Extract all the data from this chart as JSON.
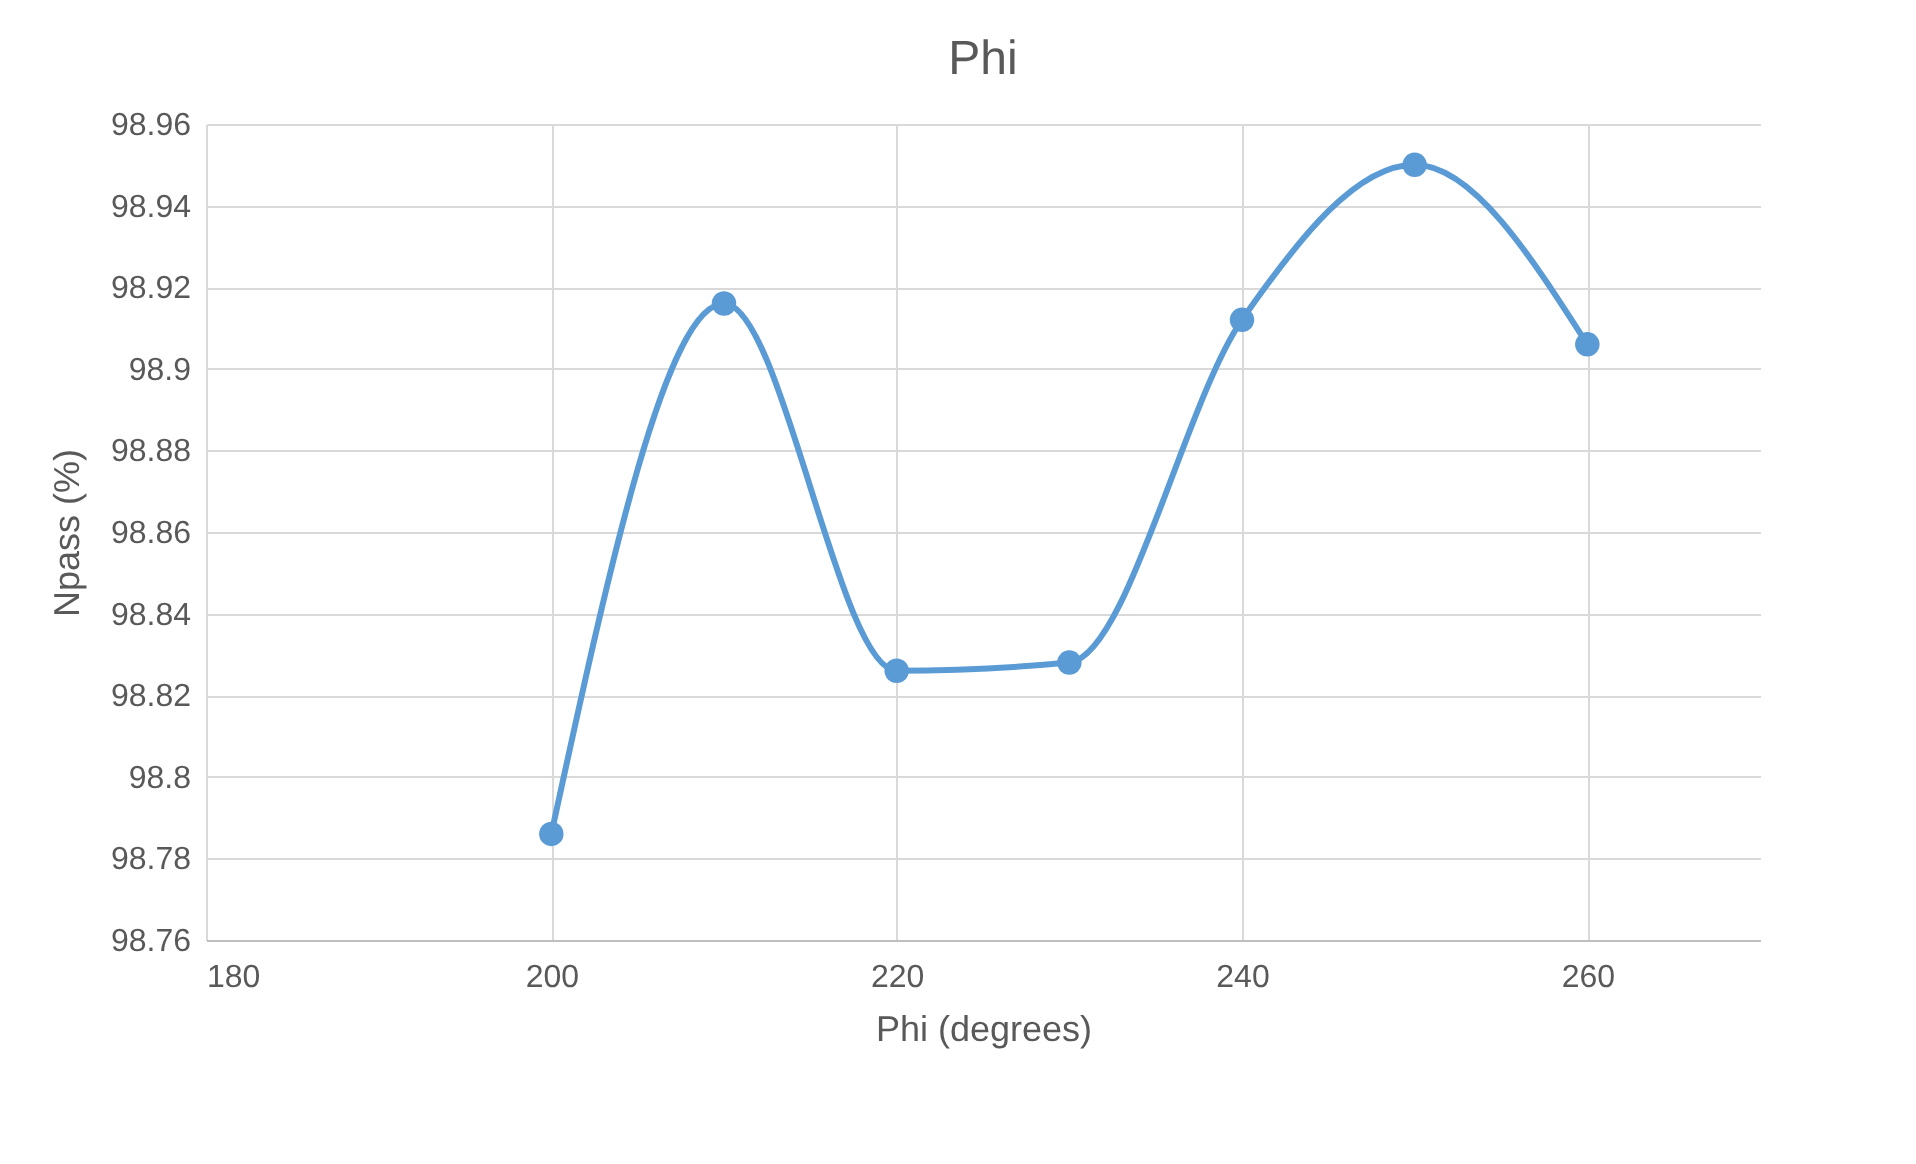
{
  "chart_data": {
    "type": "line",
    "title": "Phi",
    "xlabel": "Phi (degrees)",
    "ylabel": "Npass (%)",
    "x": [
      200,
      210,
      220,
      230,
      240,
      250,
      260
    ],
    "series": [
      {
        "color": "#5b9bd5",
        "values": [
          98.786,
          98.916,
          98.826,
          98.828,
          98.912,
          98.95,
          98.906
        ]
      }
    ],
    "xlim": [
      180,
      270
    ],
    "xticks": [
      180,
      200,
      220,
      240,
      260
    ],
    "ylim": [
      98.76,
      98.96
    ],
    "yticks": [
      98.76,
      98.78,
      98.8,
      98.82,
      98.84,
      98.86,
      98.88,
      98.9,
      98.92,
      98.94,
      98.96
    ],
    "grid": true,
    "marker": "circle",
    "line_style": "solid"
  }
}
